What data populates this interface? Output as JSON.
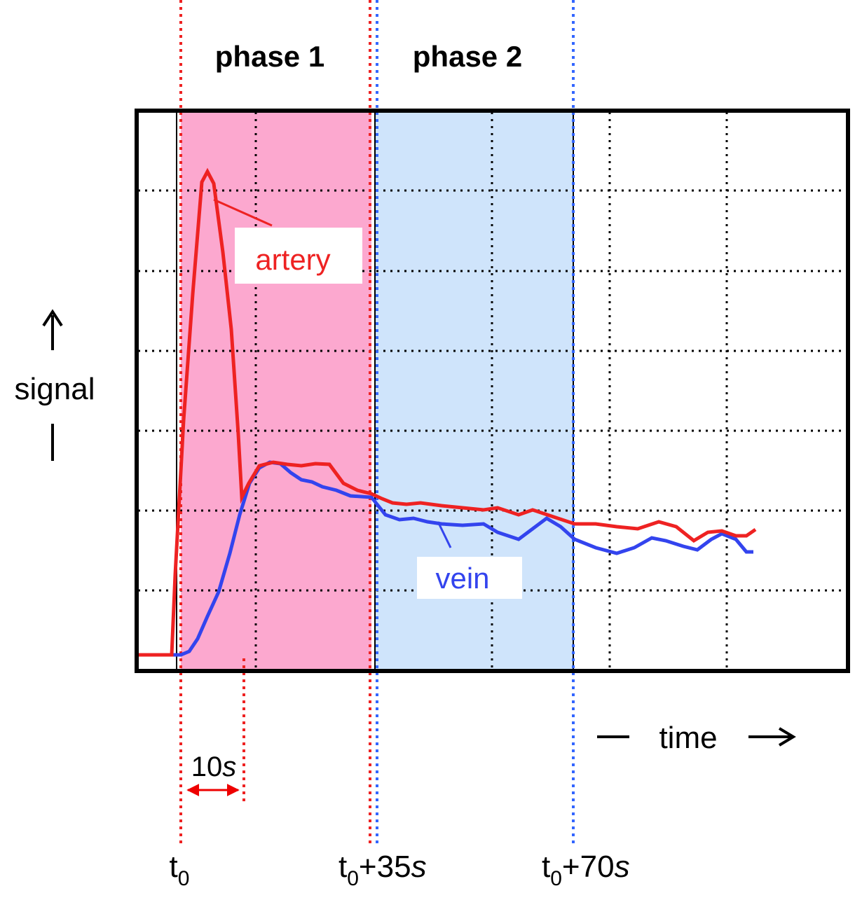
{
  "phases": [
    "phase 1",
    "phase 2"
  ],
  "axes": {
    "y": "signal",
    "x": "time"
  },
  "curves": {
    "artery": "artery",
    "vein": "vein"
  },
  "interval": {
    "number": "10",
    "unit": "s"
  },
  "markers": [
    {
      "base": "t",
      "sub": "0"
    },
    {
      "base": "t",
      "sub": "0",
      "offset": "+35",
      "unit": "s"
    },
    {
      "base": "t",
      "sub": "0",
      "offset": "+70",
      "unit": "s"
    }
  ]
}
